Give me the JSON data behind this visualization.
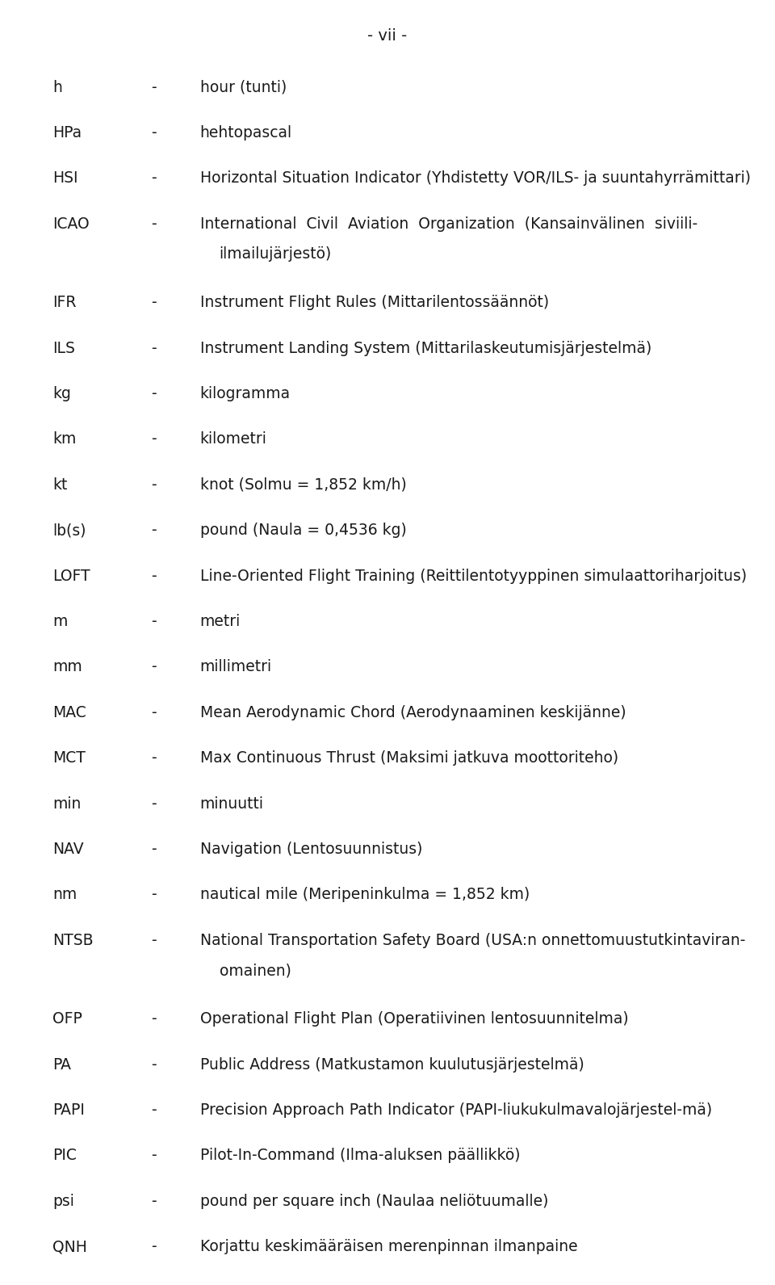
{
  "title": "- vii -",
  "background_color": "#ffffff",
  "text_color": "#1a1a1a",
  "font_size": 13.5,
  "title_font_size": 14,
  "entries": [
    {
      "abbr": "h",
      "desc": "hour (tunti)",
      "wrapped": false
    },
    {
      "abbr": "HPa",
      "desc": "hehtopascal",
      "wrapped": false
    },
    {
      "abbr": "HSI",
      "desc": "Horizontal Situation Indicator (Yhdistetty VOR/ILS- ja suuntahyrrämittari)",
      "wrapped": false
    },
    {
      "abbr": "ICAO",
      "desc": "International  Civil  Aviation  Organization  (Kansainvälinen  siviili-",
      "wrapped": true,
      "desc2": "ilmailujärjestö)"
    },
    {
      "abbr": "IFR",
      "desc": "Instrument Flight Rules (Mittarilentossäännöt)",
      "wrapped": false
    },
    {
      "abbr": "ILS",
      "desc": "Instrument Landing System (Mittarilaskeutumisjärjestelmä)",
      "wrapped": false
    },
    {
      "abbr": "kg",
      "desc": "kilogramma",
      "wrapped": false
    },
    {
      "abbr": "km",
      "desc": "kilometri",
      "wrapped": false
    },
    {
      "abbr": "kt",
      "desc": "knot (Solmu = 1,852 km/h)",
      "wrapped": false
    },
    {
      "abbr": "lb(s)",
      "desc": "pound (Naula = 0,4536 kg)",
      "wrapped": false
    },
    {
      "abbr": "LOFT",
      "desc": "Line-Oriented Flight Training (Reittilentotyyppinen simulaattoriharjoitus)",
      "wrapped": false
    },
    {
      "abbr": "m",
      "desc": "metri",
      "wrapped": false
    },
    {
      "abbr": "mm",
      "desc": "millimetri",
      "wrapped": false
    },
    {
      "abbr": "MAC",
      "desc": "Mean Aerodynamic Chord (Aerodynaaminen keskijänne)",
      "wrapped": false
    },
    {
      "abbr": "MCT",
      "desc": "Max Continuous Thrust (Maksimi jatkuva moottoriteho)",
      "wrapped": false
    },
    {
      "abbr": "min",
      "desc": "minuutti",
      "wrapped": false
    },
    {
      "abbr": "NAV",
      "desc": "Navigation (Lentosuunnistus)",
      "wrapped": false
    },
    {
      "abbr": "nm",
      "desc": "nautical mile (Meripeninkulma = 1,852 km)",
      "wrapped": false
    },
    {
      "abbr": "NTSB",
      "desc": "National Transportation Safety Board (USA:n onnettomuustutkintaviran-",
      "wrapped": true,
      "desc2": "omainen)"
    },
    {
      "abbr": "OFP",
      "desc": "Operational Flight Plan (Operatiivinen lentosuunnitelma)",
      "wrapped": false
    },
    {
      "abbr": "PA",
      "desc": "Public Address (Matkustamon kuulutusjärjestelmä)",
      "wrapped": false
    },
    {
      "abbr": "PAPI",
      "desc": "Precision Approach Path Indicator (PAPI-liukukulmavalojärjestel-mä)",
      "wrapped": false
    },
    {
      "abbr": "PIC",
      "desc": "Pilot-In-Command (Ilma-aluksen päällikkö)",
      "wrapped": false
    },
    {
      "abbr": "psi",
      "desc": "pound per square inch (Naulaa neliötuumalle)",
      "wrapped": false
    },
    {
      "abbr": "QNH",
      "desc": "Korjattu keskimääräisen merenpinnan ilmanpaine",
      "wrapped": false
    }
  ]
}
